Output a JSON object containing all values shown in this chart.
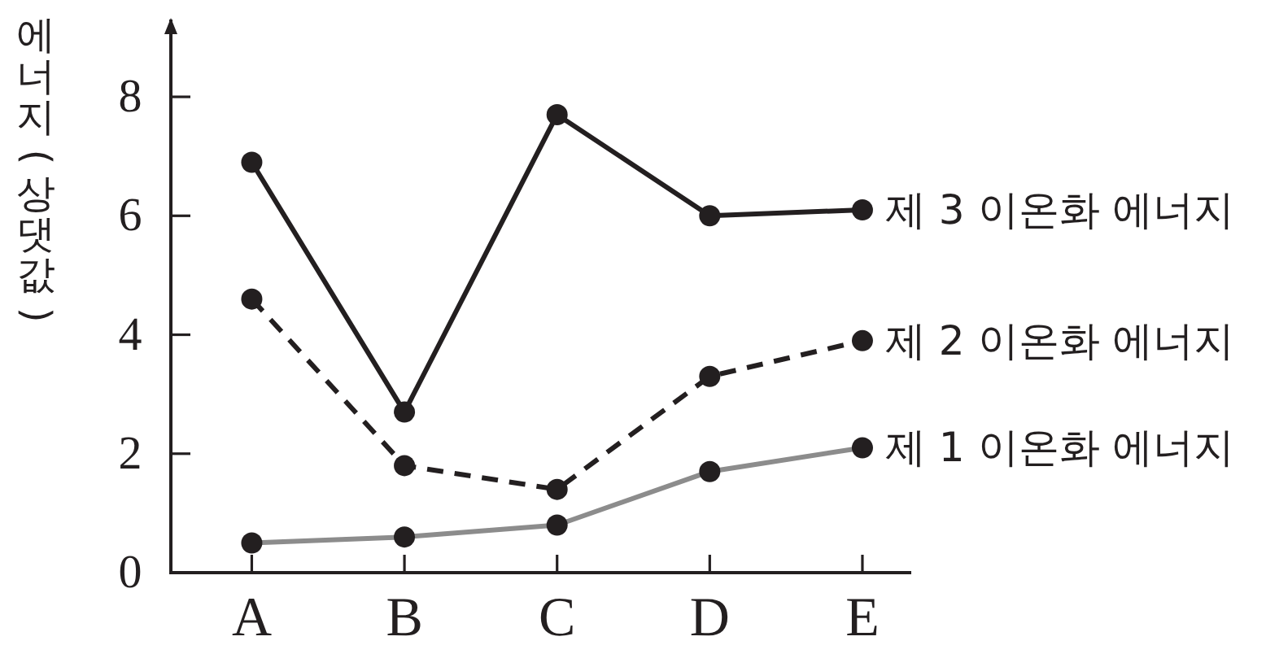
{
  "chart_data": {
    "type": "line",
    "ylabel": "에너지(상댓값)",
    "categories": [
      "A",
      "B",
      "C",
      "D",
      "E"
    ],
    "ylim": [
      0,
      9.3
    ],
    "yticks": [
      0,
      2,
      4,
      6,
      8
    ],
    "marker": "circle",
    "series": [
      {
        "name": "제 1 이온화 에너지",
        "color": "#8c8c8c",
        "line_style": "solid",
        "values": [
          0.5,
          0.6,
          0.8,
          1.7,
          2.1
        ]
      },
      {
        "name": "제 2 이온화 에너지",
        "color": "#231f20",
        "line_style": "dashed",
        "values": [
          4.6,
          1.8,
          1.4,
          3.3,
          3.9
        ]
      },
      {
        "name": "제 3 이온화 에너지",
        "color": "#231f20",
        "line_style": "solid",
        "values": [
          6.9,
          2.7,
          7.7,
          6.0,
          6.1
        ]
      }
    ]
  }
}
